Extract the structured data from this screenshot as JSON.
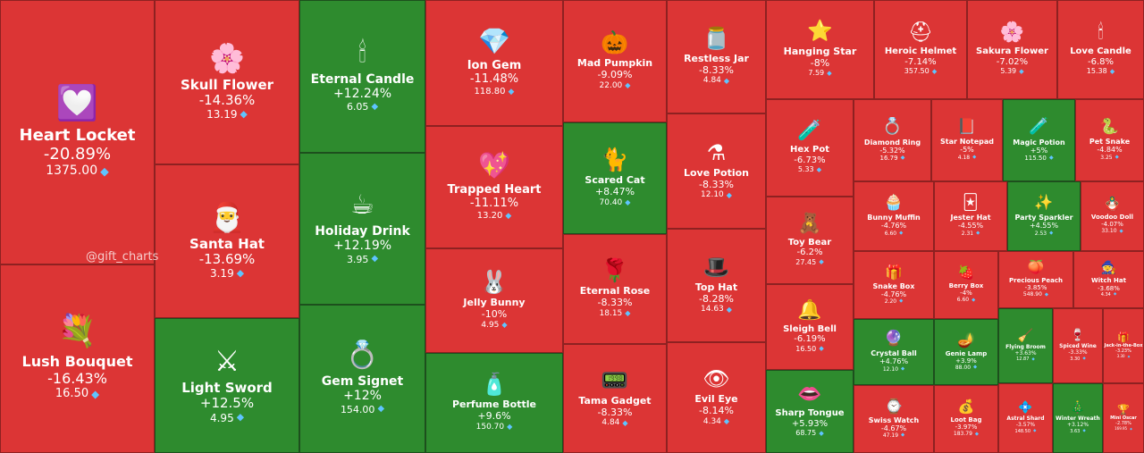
{
  "watermark": "@gift_charts",
  "colors": {
    "up": "#2e8b2e",
    "down": "#dc3535",
    "diamond": "#5fc4ff"
  },
  "chart_data": {
    "type": "treemap",
    "size_metric": "price",
    "color_metric": "change",
    "items": [
      {
        "name": "Heart Locket",
        "change": "-20.89%",
        "price": "1375.00",
        "icon": "heart-locket",
        "glyph": "💟"
      },
      {
        "name": "Lush Bouquet",
        "change": "-16.43%",
        "price": "16.50",
        "icon": "bouquet",
        "glyph": "💐"
      },
      {
        "name": "Skull Flower",
        "change": "-14.36%",
        "price": "13.19",
        "icon": "skull-flower",
        "glyph": "🌸"
      },
      {
        "name": "Santa Hat",
        "change": "-13.69%",
        "price": "3.19",
        "icon": "santa-hat",
        "glyph": "🎅"
      },
      {
        "name": "Light Sword",
        "change": "+12.5%",
        "price": "4.95",
        "icon": "light-sword",
        "glyph": "⚔"
      },
      {
        "name": "Eternal Candle",
        "change": "+12.24%",
        "price": "6.05",
        "icon": "candle",
        "glyph": "🕯"
      },
      {
        "name": "Holiday Drink",
        "change": "+12.19%",
        "price": "3.95",
        "icon": "holiday-drink",
        "glyph": "☕"
      },
      {
        "name": "Gem Signet",
        "change": "+12%",
        "price": "154.00",
        "icon": "ring",
        "glyph": "💍"
      },
      {
        "name": "Ion Gem",
        "change": "-11.48%",
        "price": "118.80",
        "icon": "gem",
        "glyph": "💎"
      },
      {
        "name": "Trapped Heart",
        "change": "-11.11%",
        "price": "13.20",
        "icon": "trapped-heart",
        "glyph": "💖"
      },
      {
        "name": "Jelly Bunny",
        "change": "-10%",
        "price": "4.95",
        "icon": "bunny",
        "glyph": "🐰"
      },
      {
        "name": "Perfume Bottle",
        "change": "+9.6%",
        "price": "150.70",
        "icon": "perfume",
        "glyph": "🧴"
      },
      {
        "name": "Mad Pumpkin",
        "change": "-9.09%",
        "price": "22.00",
        "icon": "pumpkin",
        "glyph": "🎃"
      },
      {
        "name": "Scared Cat",
        "change": "+8.47%",
        "price": "70.40",
        "icon": "cat",
        "glyph": "🐈"
      },
      {
        "name": "Eternal Rose",
        "change": "-8.33%",
        "price": "18.15",
        "icon": "rose",
        "glyph": "🌹"
      },
      {
        "name": "Tama Gadget",
        "change": "-8.33%",
        "price": "4.84",
        "icon": "tama-gadget",
        "glyph": "📟"
      },
      {
        "name": "Restless Jar",
        "change": "-8.33%",
        "price": "4.84",
        "icon": "jar",
        "glyph": "🫙"
      },
      {
        "name": "Love Potion",
        "change": "-8.33%",
        "price": "12.10",
        "icon": "love-potion",
        "glyph": "⚗"
      },
      {
        "name": "Top Hat",
        "change": "-8.28%",
        "price": "14.63",
        "icon": "top-hat",
        "glyph": "🎩"
      },
      {
        "name": "Evil Eye",
        "change": "-8.14%",
        "price": "4.34",
        "icon": "eye",
        "glyph": "👁"
      },
      {
        "name": "Hanging Star",
        "change": "-8%",
        "price": "7.59",
        "icon": "star",
        "glyph": "⭐"
      },
      {
        "name": "Heroic Helmet",
        "change": "-7.14%",
        "price": "357.50",
        "icon": "helmet",
        "glyph": "⛑"
      },
      {
        "name": "Sakura Flower",
        "change": "-7.02%",
        "price": "5.39",
        "icon": "sakura",
        "glyph": "🌸"
      },
      {
        "name": "Love Candle",
        "change": "-6.8%",
        "price": "15.38",
        "icon": "love-candle",
        "glyph": "🕯"
      },
      {
        "name": "Hex Pot",
        "change": "-6.73%",
        "price": "5.33",
        "icon": "hex-pot",
        "glyph": "🧪"
      },
      {
        "name": "Toy Bear",
        "change": "-6.2%",
        "price": "27.45",
        "icon": "bear",
        "glyph": "🧸"
      },
      {
        "name": "Sleigh Bell",
        "change": "-6.19%",
        "price": "16.50",
        "icon": "bell",
        "glyph": "🔔"
      },
      {
        "name": "Sharp Tongue",
        "change": "+5.93%",
        "price": "68.75",
        "icon": "tongue",
        "glyph": "👄"
      },
      {
        "name": "Diamond Ring",
        "change": "-5.32%",
        "price": "16.79",
        "icon": "diamond-ring",
        "glyph": "💍"
      },
      {
        "name": "Star Notepad",
        "change": "-5%",
        "price": "4.18",
        "icon": "notepad",
        "glyph": "📕"
      },
      {
        "name": "Magic Potion",
        "change": "+5%",
        "price": "115.50",
        "icon": "magic-potion",
        "glyph": "🧪"
      },
      {
        "name": "Pet Snake",
        "change": "-4.84%",
        "price": "3.25",
        "icon": "snake",
        "glyph": "🐍"
      },
      {
        "name": "Bunny Muffin",
        "change": "-4.76%",
        "price": "6.60",
        "icon": "muffin",
        "glyph": "🧁"
      },
      {
        "name": "Jester Hat",
        "change": "-4.55%",
        "price": "2.31",
        "icon": "jester-hat",
        "glyph": "🃏"
      },
      {
        "name": "Party Sparkler",
        "change": "+4.55%",
        "price": "2.53",
        "icon": "sparkler",
        "glyph": "✨"
      },
      {
        "name": "Voodoo Doll",
        "change": "-4.07%",
        "price": "33.10",
        "icon": "voodoo-doll",
        "glyph": "🪆"
      },
      {
        "name": "Snake Box",
        "change": "-4.76%",
        "price": "2.20",
        "icon": "snake-box",
        "glyph": "🎁"
      },
      {
        "name": "Berry Box",
        "change": "-4%",
        "price": "6.60",
        "icon": "berry-box",
        "glyph": "🍓"
      },
      {
        "name": "Precious Peach",
        "change": "-3.85%",
        "price": "548.90",
        "icon": "peach",
        "glyph": "🍑"
      },
      {
        "name": "Witch Hat",
        "change": "-3.68%",
        "price": "4.34",
        "icon": "witch-hat",
        "glyph": "🧙"
      },
      {
        "name": "Crystal Ball",
        "change": "+4.76%",
        "price": "12.10",
        "icon": "crystal-ball",
        "glyph": "🔮"
      },
      {
        "name": "Genie Lamp",
        "change": "+3.9%",
        "price": "88.00",
        "icon": "lamp",
        "glyph": "🪔"
      },
      {
        "name": "Flying Broom",
        "change": "+3.63%",
        "price": "12.87",
        "icon": "broom",
        "glyph": "🧹"
      },
      {
        "name": "Spiced Wine",
        "change": "-3.33%",
        "price": "3.30",
        "icon": "wine",
        "glyph": "🍷"
      },
      {
        "name": "Jack-in-the-Box",
        "change": "-3.23%",
        "price": "3.30",
        "icon": "jack-box",
        "glyph": "🎁"
      },
      {
        "name": "Swiss Watch",
        "change": "-4.67%",
        "price": "47.19",
        "icon": "watch",
        "glyph": "⌚"
      },
      {
        "name": "Loot Bag",
        "change": "-3.97%",
        "price": "183.79",
        "icon": "loot-bag",
        "glyph": "💰"
      },
      {
        "name": "Astral Shard",
        "change": "-3.57%",
        "price": "148.50",
        "icon": "shard",
        "glyph": "💠"
      },
      {
        "name": "Winter Wreath",
        "change": "+3.12%",
        "price": "3.63",
        "icon": "wreath",
        "glyph": "🎄"
      },
      {
        "name": "Mini Oscar",
        "change": "-2.78%",
        "price": "169.95",
        "icon": "oscar",
        "glyph": "🏆"
      }
    ]
  }
}
